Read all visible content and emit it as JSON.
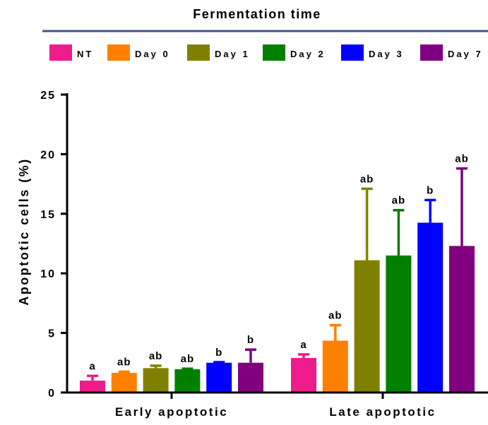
{
  "chart_data": {
    "type": "bar",
    "title": "Fermentation time",
    "xlabel": "",
    "ylabel": "Apoptotic cells (%)",
    "ylim": [
      0,
      25
    ],
    "yticks": [
      0,
      5,
      10,
      15,
      20,
      25
    ],
    "grid": false,
    "legend_position": "top",
    "categories": [
      "Early apoptotic",
      "Late apoptotic"
    ],
    "series": [
      {
        "name": "NT",
        "color": "#ee1c8a",
        "values": [
          1.0,
          2.9
        ],
        "errors": [
          0.4,
          0.3
        ],
        "annotations": [
          "a",
          "a"
        ]
      },
      {
        "name": "Day 0",
        "color": "#ff8000",
        "values": [
          1.65,
          4.35
        ],
        "errors": [
          0.1,
          1.3
        ],
        "annotations": [
          "ab",
          "ab"
        ]
      },
      {
        "name": "Day 1",
        "color": "#808000",
        "values": [
          2.05,
          11.1
        ],
        "errors": [
          0.2,
          6.0
        ],
        "annotations": [
          "ab",
          "ab"
        ]
      },
      {
        "name": "Day 2",
        "color": "#008000",
        "values": [
          1.95,
          11.5
        ],
        "errors": [
          0.05,
          3.8
        ],
        "annotations": [
          "ab",
          "ab"
        ]
      },
      {
        "name": "Day 3",
        "color": "#0000ff",
        "values": [
          2.5,
          14.25
        ],
        "errors": [
          0.05,
          1.9
        ],
        "annotations": [
          "b",
          "b"
        ]
      },
      {
        "name": "Day 7",
        "color": "#800080",
        "values": [
          2.5,
          12.3
        ],
        "errors": [
          1.1,
          6.5
        ],
        "annotations": [
          "b",
          "ab"
        ]
      }
    ]
  }
}
